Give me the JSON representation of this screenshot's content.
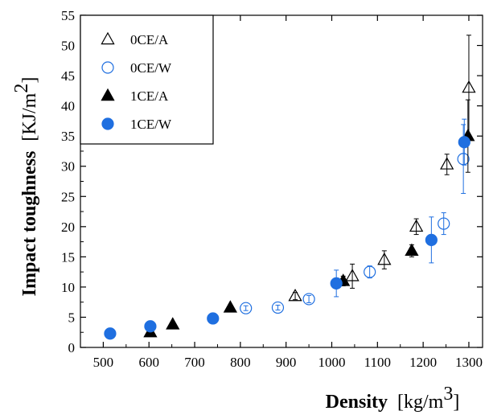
{
  "chart_data": {
    "type": "scatter",
    "xlabel": {
      "main": "Density",
      "unit": "[kg/m",
      "sup": "3",
      "close": "]"
    },
    "ylabel": {
      "main": "Impact toughness",
      "unit": "[KJ/m",
      "sup": "2",
      "close": "]"
    },
    "xlim": [
      450,
      1330
    ],
    "ylim": [
      0,
      55
    ],
    "xticks": [
      500,
      600,
      700,
      800,
      900,
      1000,
      1100,
      1200,
      1300
    ],
    "yticks": [
      0,
      5,
      10,
      15,
      20,
      25,
      30,
      35,
      40,
      45,
      50,
      55
    ],
    "grid": false,
    "legend_position": "top-left",
    "series": [
      {
        "name": "0CE/A",
        "marker": "triangle-open",
        "color": "#000000",
        "points": [
          {
            "x": 920,
            "y": 8.5,
            "err": 0.6
          },
          {
            "x": 1045,
            "y": 11.8,
            "err": 2.0
          },
          {
            "x": 1115,
            "y": 14.5,
            "err": 1.5
          },
          {
            "x": 1185,
            "y": 20.0,
            "err": 1.3
          },
          {
            "x": 1252,
            "y": 30.3,
            "err": 1.7
          },
          {
            "x": 1300,
            "y": 43.0,
            "err": 8.7
          }
        ]
      },
      {
        "name": "0CE/W",
        "marker": "circle-open",
        "color": "#1f6fe0",
        "points": [
          {
            "x": 812,
            "y": 6.5,
            "err": 0.4
          },
          {
            "x": 882,
            "y": 6.6,
            "err": 0.4
          },
          {
            "x": 950,
            "y": 8.0,
            "err": 0.6
          },
          {
            "x": 1083,
            "y": 12.5,
            "err": 1.0
          },
          {
            "x": 1245,
            "y": 20.5,
            "err": 1.8
          },
          {
            "x": 1288,
            "y": 31.2,
            "err": 5.7
          }
        ]
      },
      {
        "name": "1CE/A",
        "marker": "triangle-filled",
        "color": "#000000",
        "points": [
          {
            "x": 603,
            "y": 2.5,
            "err": 0.3
          },
          {
            "x": 652,
            "y": 3.8,
            "err": 0.3
          },
          {
            "x": 778,
            "y": 6.6,
            "err": 0.4
          },
          {
            "x": 1025,
            "y": 11.0,
            "err": 0.8
          },
          {
            "x": 1175,
            "y": 16.0,
            "err": 1.0
          },
          {
            "x": 1298,
            "y": 35.0,
            "err": 6.0
          }
        ]
      },
      {
        "name": "1CE/W",
        "marker": "circle-filled",
        "color": "#1f6fe0",
        "points": [
          {
            "x": 515,
            "y": 2.3,
            "err": 0.2
          },
          {
            "x": 603,
            "y": 3.5,
            "err": 0.3
          },
          {
            "x": 740,
            "y": 4.8,
            "err": 0.3
          },
          {
            "x": 1010,
            "y": 10.6,
            "err": 2.2
          },
          {
            "x": 1218,
            "y": 17.8,
            "err": 3.8
          },
          {
            "x": 1290,
            "y": 34.0,
            "err": 3.8
          }
        ]
      }
    ]
  }
}
